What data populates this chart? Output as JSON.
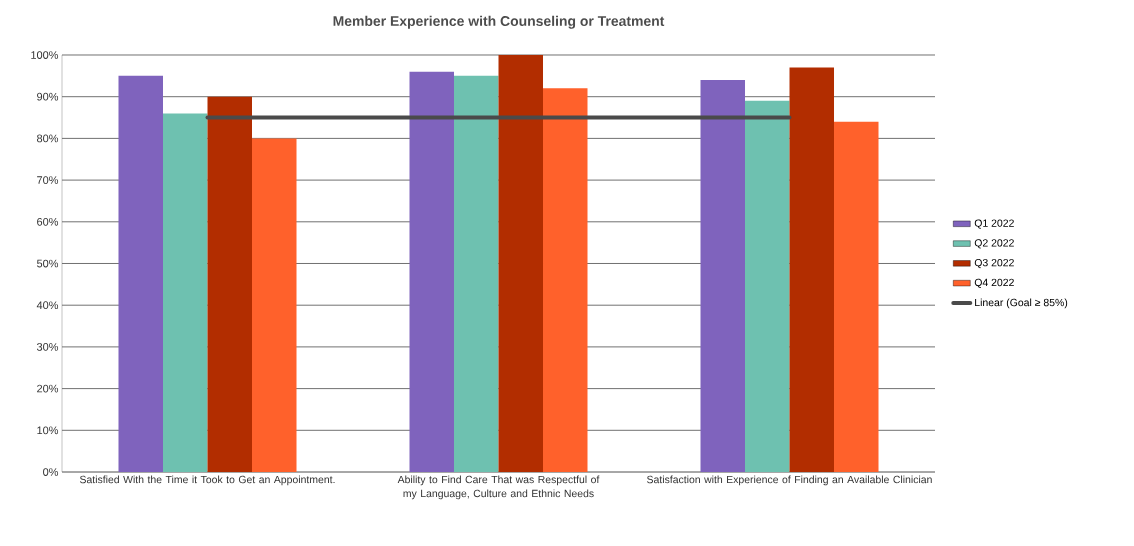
{
  "chart_data": {
    "type": "bar",
    "title": "Member Experience with Counseling or Treatment",
    "categories": [
      "Satisfied With the Time it Took to Get an Appointment.",
      "Ability to Find Care That was Respectful of my Language, Culture and Ethnic Needs",
      "Satisfaction with Experience of Finding an Available Clinician"
    ],
    "series": [
      {
        "name": "Q1 2022",
        "color": "#7f63bd",
        "values": [
          95,
          96,
          94
        ]
      },
      {
        "name": "Q2 2022",
        "color": "#6ec1b0",
        "values": [
          86,
          95,
          89
        ]
      },
      {
        "name": "Q3 2022",
        "color": "#b22d00",
        "values": [
          90,
          100,
          97
        ]
      },
      {
        "name": "Q4 2022",
        "color": "#ff612b",
        "values": [
          80,
          92,
          84
        ]
      },
      {
        "name": "Linear (Goal ≥ 85%)",
        "type": "line",
        "color": "#4a4a4a",
        "values": [
          85,
          85,
          85
        ]
      }
    ],
    "ylim": [
      0,
      100
    ],
    "yticks": [
      {
        "value": 0,
        "label": "0%"
      },
      {
        "value": 10,
        "label": "10%"
      },
      {
        "value": 20,
        "label": "20%"
      },
      {
        "value": 30,
        "label": "30%"
      },
      {
        "value": 40,
        "label": "40%"
      },
      {
        "value": 50,
        "label": "50%"
      },
      {
        "value": 60,
        "label": "60%"
      },
      {
        "value": 70,
        "label": "70%"
      },
      {
        "value": 80,
        "label": "80%"
      },
      {
        "value": 90,
        "label": "90%"
      },
      {
        "value": 100,
        "label": "100%"
      }
    ],
    "grid": "y",
    "legend": "right"
  }
}
